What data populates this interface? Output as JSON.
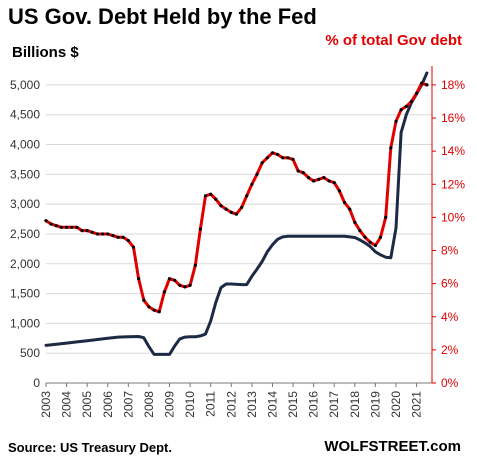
{
  "chart_data": {
    "type": "line",
    "title": "US Gov. Debt Held by the Fed",
    "ylabel": "Billions  $",
    "y2label": "% of total Gov debt",
    "source": "Source: US Treasury Dept.",
    "brand": "WOLFSTREET.com",
    "xlim": [
      2003,
      2021.75
    ],
    "ylim": [
      0,
      5250
    ],
    "y2lim": [
      0,
      18.9
    ],
    "x_ticks": [
      "2003",
      "2004",
      "2005",
      "2006",
      "2007",
      "2008",
      "2009",
      "2010",
      "2011",
      "2012",
      "2013",
      "2014",
      "2015",
      "2016",
      "2017",
      "2018",
      "2019",
      "2020",
      "2021"
    ],
    "y_ticks": [
      "0",
      "500",
      "1,000",
      "1,500",
      "2,000",
      "2,500",
      "3,000",
      "3,500",
      "4,000",
      "4,500",
      "5,000"
    ],
    "y2_ticks": [
      "0%",
      "2%",
      "4%",
      "6%",
      "8%",
      "10%",
      "12%",
      "14%",
      "16%",
      "18%"
    ],
    "grid": true,
    "series": [
      {
        "name": "Billions $",
        "axis": "left",
        "color": "#1c2a44",
        "x": [
          2003,
          2003.5,
          2004,
          2004.5,
          2005,
          2005.5,
          2006,
          2006.5,
          2007,
          2007.5,
          2007.75,
          2008,
          2008.25,
          2008.5,
          2008.75,
          2009,
          2009.25,
          2009.5,
          2009.75,
          2010,
          2010.25,
          2010.5,
          2010.75,
          2011,
          2011.25,
          2011.5,
          2011.75,
          2012,
          2012.5,
          2012.75,
          2013,
          2013.25,
          2013.5,
          2013.75,
          2014,
          2014.25,
          2014.5,
          2014.75,
          2015,
          2015.5,
          2016,
          2016.5,
          2017,
          2017.5,
          2018,
          2018.25,
          2018.5,
          2018.75,
          2019,
          2019.25,
          2019.5,
          2019.75,
          2020,
          2020.25,
          2020.5,
          2020.75,
          2021,
          2021.25,
          2021.5
        ],
        "values": [
          630,
          650,
          670,
          690,
          710,
          730,
          750,
          770,
          775,
          780,
          760,
          610,
          480,
          480,
          480,
          480,
          620,
          740,
          770,
          775,
          775,
          790,
          820,
          1040,
          1350,
          1600,
          1660,
          1660,
          1650,
          1650,
          1790,
          1910,
          2040,
          2200,
          2320,
          2410,
          2450,
          2460,
          2460,
          2460,
          2460,
          2460,
          2460,
          2460,
          2440,
          2400,
          2350,
          2290,
          2200,
          2150,
          2110,
          2100,
          2600,
          4200,
          4500,
          4700,
          4850,
          5000,
          5200
        ]
      },
      {
        "name": "% of total Gov debt",
        "axis": "right",
        "color": "#e00000",
        "x": [
          2003,
          2003.25,
          2003.5,
          2003.75,
          2004,
          2004.25,
          2004.5,
          2004.75,
          2005,
          2005.25,
          2005.5,
          2005.75,
          2006,
          2006.25,
          2006.5,
          2006.75,
          2007,
          2007.25,
          2007.5,
          2007.75,
          2008,
          2008.25,
          2008.5,
          2008.75,
          2009,
          2009.25,
          2009.5,
          2009.75,
          2010,
          2010.25,
          2010.5,
          2010.75,
          2011,
          2011.25,
          2011.5,
          2011.75,
          2012,
          2012.25,
          2012.5,
          2012.75,
          2013,
          2013.25,
          2013.5,
          2013.75,
          2014,
          2014.25,
          2014.5,
          2014.75,
          2015,
          2015.25,
          2015.5,
          2015.75,
          2016,
          2016.25,
          2016.5,
          2016.75,
          2017,
          2017.25,
          2017.5,
          2017.75,
          2018,
          2018.25,
          2018.5,
          2018.75,
          2019,
          2019.25,
          2019.5,
          2019.75,
          2020,
          2020.25,
          2020.5,
          2020.75,
          2021,
          2021.25,
          2021.5
        ],
        "values": [
          9.8,
          9.6,
          9.5,
          9.4,
          9.4,
          9.4,
          9.4,
          9.2,
          9.2,
          9.1,
          9.0,
          9.0,
          9.0,
          8.9,
          8.8,
          8.8,
          8.6,
          8.2,
          6.3,
          5.0,
          4.6,
          4.4,
          4.3,
          5.5,
          6.3,
          6.2,
          5.9,
          5.8,
          5.9,
          7.1,
          9.3,
          11.3,
          11.4,
          11.1,
          10.7,
          10.5,
          10.3,
          10.2,
          10.6,
          11.3,
          12.0,
          12.6,
          13.3,
          13.6,
          13.9,
          13.8,
          13.6,
          13.6,
          13.5,
          12.8,
          12.7,
          12.4,
          12.2,
          12.3,
          12.4,
          12.2,
          12.1,
          11.6,
          10.9,
          10.5,
          9.7,
          9.2,
          8.8,
          8.5,
          8.3,
          8.8,
          10.0,
          14.2,
          15.8,
          16.5,
          16.7,
          17.0,
          17.5,
          18.1,
          18.0
        ]
      }
    ]
  }
}
